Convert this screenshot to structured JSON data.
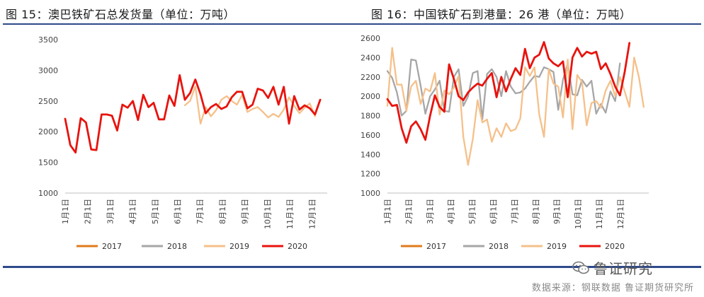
{
  "left_title": "图 15：澳巴铁矿石总发货量（单位：万吨）",
  "right_title": "图 16：中国铁矿石到港量：26 港（单位：万吨）",
  "brand_name": "鲁证研究",
  "source": "数据来源：钢联数据  鲁证期货研究所",
  "colors": {
    "rule": "#2e4a8c",
    "s2017": "#e07b1c",
    "s2018": "#a6a6a6",
    "s2019": "#f5c08a",
    "s2020": "#e8130e"
  },
  "chart_data": [
    {
      "type": "line",
      "title": "澳巴铁矿石总发货量（单位：万吨）",
      "x_tick_labels": [
        "1月1日",
        "2月1日",
        "3月1日",
        "4月1日",
        "5月1日",
        "6月1日",
        "7月1日",
        "8月1日",
        "9月1日",
        "10月1日",
        "11月1日",
        "12月1日"
      ],
      "ylim": [
        1000,
        3500
      ],
      "y_ticks": [
        1000,
        1500,
        2000,
        2500,
        3000,
        3500
      ],
      "grid": false,
      "legend_position": "bottom",
      "series": [
        {
          "name": "2017",
          "color": "#e07b1c",
          "values": []
        },
        {
          "name": "2018",
          "color": "#a6a6a6",
          "values": []
        },
        {
          "name": "2019",
          "color": "#f5c08a",
          "start_index": 23,
          "values": [
            2430,
            2500,
            2740,
            2130,
            2400,
            2250,
            2350,
            2520,
            2580,
            2500,
            2440,
            2600,
            2320,
            2370,
            2400,
            2320,
            2230,
            2290,
            2240,
            2360,
            2560,
            2420,
            2300,
            2390,
            2460,
            2250
          ]
        },
        {
          "name": "2020",
          "color": "#e8130e",
          "start_index": 0,
          "values": [
            2210,
            1780,
            1660,
            2220,
            2150,
            1710,
            1700,
            2280,
            2280,
            2260,
            2020,
            2440,
            2390,
            2500,
            2190,
            2600,
            2400,
            2470,
            2200,
            2200,
            2590,
            2420,
            2920,
            2520,
            2630,
            2850,
            2610,
            2300,
            2400,
            2450,
            2370,
            2410,
            2560,
            2650,
            2650,
            2380,
            2440,
            2700,
            2670,
            2550,
            2730,
            2440,
            2730,
            2130,
            2580,
            2360,
            2430,
            2380,
            2280,
            2520
          ]
        }
      ]
    },
    {
      "type": "line",
      "title": "中国铁矿石到港量：26 港（单位：万吨）",
      "x_tick_labels": [
        "1月1日",
        "2月1日",
        "3月1日",
        "4月1日",
        "5月1日",
        "6月1日",
        "7月1日",
        "8月1日",
        "9月1日",
        "10月1日",
        "11月1日",
        "12月1日"
      ],
      "ylim": [
        1000,
        2600
      ],
      "y_ticks": [
        1000,
        1200,
        1400,
        1600,
        1800,
        2000,
        2200,
        2400,
        2600
      ],
      "grid": false,
      "legend_position": "bottom",
      "series": [
        {
          "name": "2017",
          "color": "#e07b1c",
          "values": []
        },
        {
          "name": "2018",
          "color": "#a6a6a6",
          "start_index": 0,
          "values": [
            2260,
            2190,
            2040,
            1800,
            1850,
            2380,
            2370,
            2110,
            1820,
            2000,
            2070,
            2160,
            1850,
            1840,
            2200,
            2280,
            1900,
            2000,
            2240,
            2260,
            1760,
            2230,
            2280,
            2200,
            2000,
            2260,
            2100,
            2030,
            2040,
            2080,
            2150,
            2210,
            2200,
            2300,
            2280,
            2250,
            1860,
            2170,
            2340,
            2020,
            2010,
            2170,
            2100,
            2160,
            1820,
            1920,
            1830,
            2050,
            1950,
            2340
          ]
        },
        {
          "name": "2019",
          "color": "#f5c08a",
          "start_index": 0,
          "values": [
            1900,
            2500,
            2120,
            2120,
            1850,
            2100,
            2160,
            1920,
            2080,
            2050,
            2240,
            1810,
            2060,
            2020,
            2090,
            2210,
            1580,
            1290,
            1560,
            1960,
            1730,
            1760,
            1530,
            1670,
            1580,
            1720,
            1640,
            1660,
            1770,
            2300,
            2210,
            2300,
            1810,
            1580,
            2280,
            2130,
            2100,
            1780,
            2380,
            1660,
            2220,
            2150,
            1700,
            1930,
            1950,
            1880,
            2060,
            2160,
            2000,
            2200,
            2050,
            1890,
            2400,
            2200,
            1890
          ]
        },
        {
          "name": "2020",
          "color": "#e8130e",
          "start_index": 0,
          "values": [
            1970,
            1900,
            1910,
            1670,
            1520,
            1690,
            1740,
            1660,
            1550,
            1800,
            2010,
            1890,
            1840,
            2330,
            2180,
            2000,
            1960,
            2040,
            2090,
            2130,
            2110,
            2180,
            2240,
            1990,
            2200,
            2050,
            2180,
            2290,
            2220,
            2490,
            2290,
            2400,
            2430,
            2560,
            2390,
            2340,
            2310,
            2360,
            1990,
            2400,
            2500,
            2410,
            2460,
            2440,
            2460,
            2280,
            2340,
            2230,
            2100,
            2010,
            2250,
            2550
          ]
        }
      ]
    }
  ]
}
